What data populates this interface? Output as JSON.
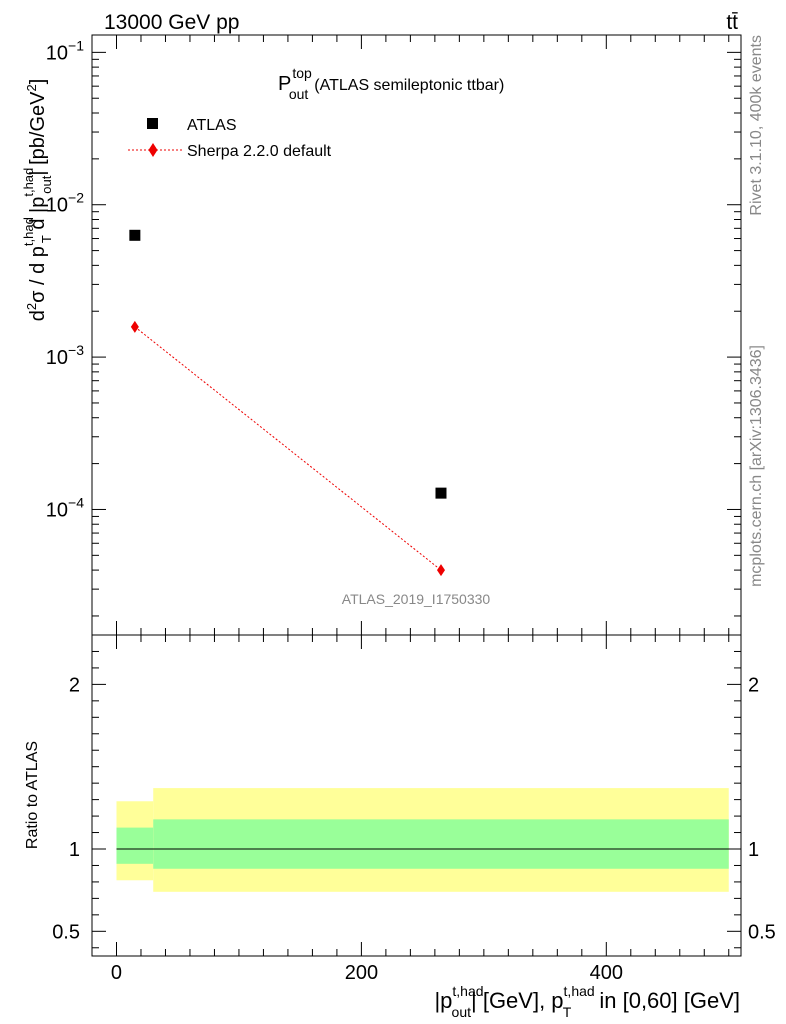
{
  "header": {
    "left": "13000 GeV pp",
    "right": "tt̄"
  },
  "side_labels": {
    "rivet": "Rivet 3.1.10,  400k events",
    "mcplots": "mcplots.cern.ch [arXiv:1306.3436]"
  },
  "colors": {
    "data": "#000000",
    "mc": "#ee0000",
    "band_inner": "#99ff99",
    "band_outer": "#ffff99"
  },
  "chart_data": [
    {
      "type": "scatter",
      "title": "P_out^top (ATLAS semileptonic ttbar)",
      "title_main": "P",
      "title_sup": "top",
      "title_sub": "out",
      "title_rest": "(ATLAS semileptonic ttbar)",
      "ylabel": "d²σ / d p_T^{t,had} d |p_out^{t,had}| [pb/GeV²]",
      "yscale": "log",
      "ylim": [
        1.5e-05,
        0.13
      ],
      "xlim": [
        -20,
        510
      ],
      "watermark": "ATLAS_2019_I1750330",
      "legend_placement": "top-left",
      "y_ticks": [
        {
          "value": 0.1,
          "mant": "10",
          "exp": "−1"
        },
        {
          "value": 0.01,
          "mant": "10",
          "exp": "−2"
        },
        {
          "value": 0.001,
          "mant": "10",
          "exp": "−3"
        },
        {
          "value": 0.0001,
          "mant": "10",
          "exp": "−4"
        }
      ],
      "series": [
        {
          "name": "ATLAS",
          "marker": "square",
          "x": [
            15,
            265
          ],
          "y": [
            0.0063,
            0.000128
          ]
        },
        {
          "name": "Sherpa 2.2.0 default",
          "marker": "diamond",
          "line": "dotted",
          "x": [
            15,
            265
          ],
          "y": [
            0.00158,
            4e-05
          ]
        }
      ]
    },
    {
      "type": "area",
      "ylabel": "Ratio to ATLAS",
      "ylim": [
        0.35,
        2.3
      ],
      "xlim": [
        -20,
        510
      ],
      "xlabel": "|p_out^{t,had}| [GeV], p_T^{t,had} in [0,60] [GeV]",
      "x_ticks": [
        0,
        200,
        400
      ],
      "y_ticks": [
        0.5,
        1,
        2
      ],
      "reference_line": 1,
      "bands": [
        {
          "x_from": 0,
          "x_to": 30,
          "inner": [
            0.91,
            1.13
          ],
          "outer": [
            0.81,
            1.29
          ]
        },
        {
          "x_from": 30,
          "x_to": 500,
          "inner": [
            0.88,
            1.18
          ],
          "outer": [
            0.74,
            1.37
          ]
        }
      ]
    }
  ]
}
